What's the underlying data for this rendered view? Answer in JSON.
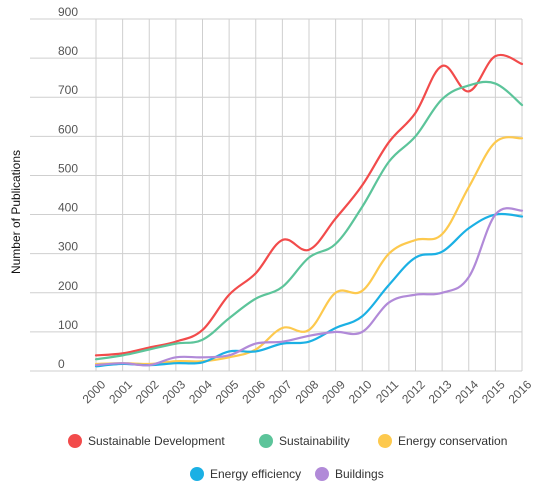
{
  "chart_data": {
    "type": "line",
    "title": "",
    "xlabel": "",
    "ylabel": "Number of Publications",
    "ylim": [
      0,
      900
    ],
    "yticks": [
      0,
      100,
      200,
      300,
      400,
      500,
      600,
      700,
      800,
      900
    ],
    "grid": true,
    "legend_position": "bottom",
    "categories": [
      "2000",
      "2001",
      "2002",
      "2003",
      "2004",
      "2005",
      "2006",
      "2007",
      "2008",
      "2009",
      "2010",
      "2011",
      "2012",
      "2013",
      "2014",
      "2015",
      "2016"
    ],
    "series": [
      {
        "name": "Sustainable Development",
        "color": "#f24b4b",
        "values": [
          40,
          45,
          60,
          75,
          105,
          195,
          250,
          335,
          310,
          390,
          475,
          585,
          660,
          780,
          715,
          805,
          785
        ]
      },
      {
        "name": "Sustainability",
        "color": "#5cc49a",
        "values": [
          30,
          40,
          55,
          70,
          80,
          135,
          185,
          215,
          290,
          325,
          420,
          535,
          600,
          695,
          730,
          735,
          680
        ]
      },
      {
        "name": "Energy conservation",
        "color": "#fdc94e",
        "values": [
          18,
          20,
          18,
          25,
          25,
          35,
          55,
          110,
          105,
          200,
          205,
          300,
          335,
          350,
          470,
          585,
          595
        ]
      },
      {
        "name": "Energy efficiency",
        "color": "#1bb0e4",
        "values": [
          12,
          18,
          15,
          20,
          22,
          50,
          50,
          70,
          75,
          110,
          140,
          220,
          290,
          305,
          365,
          400,
          395
        ]
      },
      {
        "name": "Buildings",
        "color": "#b18ad8",
        "values": [
          15,
          20,
          15,
          35,
          35,
          40,
          70,
          75,
          90,
          100,
          100,
          175,
          195,
          200,
          240,
          400,
          410
        ]
      }
    ]
  }
}
